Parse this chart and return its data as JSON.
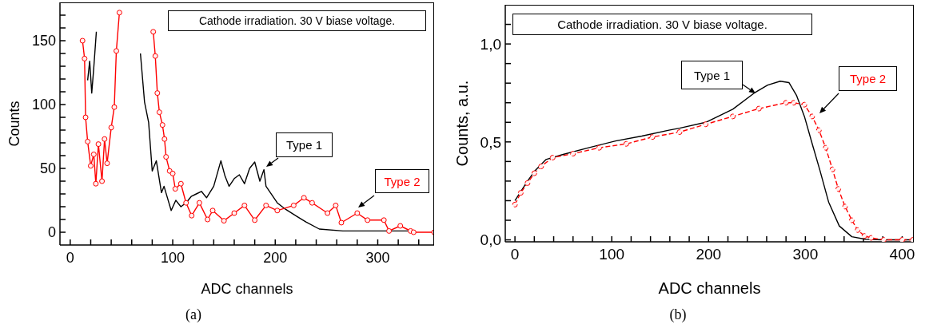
{
  "chart_data": [
    {
      "type": "line",
      "xlabel": "ADC channels",
      "ylabel": "Counts",
      "xlim": [
        -10,
        355
      ],
      "ylim": [
        -10,
        180
      ],
      "xticks": [
        0,
        {
          "value": 20,
          "label": null
        },
        {
          "value": 40,
          "label": null
        },
        {
          "value": 60,
          "label": null
        },
        {
          "value": 80,
          "label": null
        },
        100,
        {
          "value": 120,
          "label": null
        },
        {
          "value": 140,
          "label": null
        },
        {
          "value": 160,
          "label": null
        },
        {
          "value": 180,
          "label": null
        },
        200,
        {
          "value": 220,
          "label": null
        },
        {
          "value": 240,
          "label": null
        },
        {
          "value": 260,
          "label": null
        },
        {
          "value": 280,
          "label": null
        },
        300,
        {
          "value": 320,
          "label": null
        },
        {
          "value": 340,
          "label": null
        }
      ],
      "yticks": [
        0,
        {
          "value": 10,
          "label": null
        },
        {
          "value": 20,
          "label": null
        },
        {
          "value": 30,
          "label": null
        },
        {
          "value": 40,
          "label": null
        },
        50,
        {
          "value": 60,
          "label": null
        },
        {
          "value": 70,
          "label": null
        },
        {
          "value": 80,
          "label": null
        },
        {
          "value": 90,
          "label": null
        },
        100,
        {
          "value": 110,
          "label": null
        },
        {
          "value": 120,
          "label": null
        },
        {
          "value": 130,
          "label": null
        },
        {
          "value": 140,
          "label": null
        },
        150,
        {
          "value": 160,
          "label": null
        },
        {
          "value": 170,
          "label": null
        }
      ],
      "annotations": [
        "Cathode irradiation. 30 V biase voltage.",
        "(a)"
      ],
      "series": [
        {
          "name": "Type 1",
          "color": "#000000",
          "marker": "none",
          "line_style": "solid",
          "x": [
            17,
            19,
            21,
            23,
            25.5,
            47,
            68.5,
            72.5,
            76.5,
            80,
            84,
            89,
            91.5,
            98.5,
            103,
            108,
            113,
            118,
            123,
            128,
            133,
            140,
            147,
            151,
            155,
            160,
            165,
            170,
            175,
            180,
            185,
            189,
            191,
            202,
            210,
            222,
            230,
            243,
            266,
            306,
            330
          ],
          "values": [
            119,
            134,
            109,
            129,
            157,
            null,
            140,
            102,
            86,
            48,
            56,
            31,
            36,
            17,
            25,
            20,
            23,
            28,
            30,
            32,
            27,
            36,
            56,
            44,
            36,
            42,
            45,
            38,
            50,
            55,
            40,
            49,
            36,
            23,
            18,
            12,
            8,
            2.5,
            1,
            1,
            1
          ]
        },
        {
          "name": "Type 2",
          "color": "#ff0000",
          "marker": "circle",
          "line_style": "solid",
          "x": [
            12,
            14,
            15,
            17,
            20,
            23,
            25,
            27.5,
            31,
            33.5,
            36,
            40,
            43,
            45,
            48,
            64,
            81,
            83,
            85,
            87,
            90,
            92,
            93.5,
            97,
            100,
            102.5,
            108,
            113,
            118.5,
            126,
            134,
            139,
            150,
            160,
            170,
            180,
            191,
            202,
            218,
            228,
            236,
            251,
            259,
            264.5,
            280,
            290,
            306,
            311,
            322,
            332,
            335,
            355
          ],
          "values": [
            150,
            136,
            90,
            71,
            52,
            61,
            38,
            69,
            40,
            73,
            54,
            82,
            98,
            142,
            172,
            null,
            157,
            138,
            109,
            94,
            84,
            73,
            59,
            48,
            46,
            34,
            38,
            23,
            13,
            23,
            10,
            17,
            9,
            15,
            21,
            9.5,
            21,
            17,
            21,
            27,
            23,
            15,
            21,
            7.5,
            15,
            9.5,
            9.5,
            1,
            5,
            1,
            0,
            0
          ]
        }
      ]
    },
    {
      "type": "line",
      "xlabel": "ADC channels",
      "ylabel": "Counts, a.u.",
      "xlim": [
        -10,
        412
      ],
      "ylim": [
        -0.01,
        1.2
      ],
      "xticks": [
        0,
        {
          "value": 20,
          "label": null
        },
        {
          "value": 40,
          "label": null
        },
        {
          "value": 60,
          "label": null
        },
        {
          "value": 80,
          "label": null
        },
        100,
        {
          "value": 120,
          "label": null
        },
        {
          "value": 140,
          "label": null
        },
        {
          "value": 160,
          "label": null
        },
        {
          "value": 180,
          "label": null
        },
        200,
        {
          "value": 220,
          "label": null
        },
        {
          "value": 240,
          "label": null
        },
        {
          "value": 260,
          "label": null
        },
        {
          "value": 280,
          "label": null
        },
        300,
        {
          "value": 320,
          "label": null
        },
        {
          "value": 340,
          "label": null
        },
        {
          "value": 360,
          "label": null
        },
        {
          "value": 380,
          "label": null
        },
        400
      ],
      "yticks": [
        {
          "value": 0,
          "label": "0,0"
        },
        {
          "value": 0.1,
          "label": null
        },
        {
          "value": 0.2,
          "label": null
        },
        {
          "value": 0.3,
          "label": null
        },
        {
          "value": 0.4,
          "label": null
        },
        {
          "value": 0.5,
          "label": "0,5"
        },
        {
          "value": 0.6,
          "label": null
        },
        {
          "value": 0.7,
          "label": null
        },
        {
          "value": 0.8,
          "label": null
        },
        {
          "value": 0.9,
          "label": null
        },
        {
          "value": 1,
          "label": "1,0"
        },
        {
          "value": 1.1,
          "label": null
        }
      ],
      "annotations": [
        "Cathode irradiation. 30 V biase voltage.",
        "(b)"
      ],
      "series": [
        {
          "name": "Type 1",
          "color": "#000000",
          "marker": "none",
          "line_style": "solid",
          "x": [
            0,
            13,
            21,
            32,
            49,
            76,
            104,
            131,
            159,
            170,
            197,
            225,
            247,
            261,
            274,
            283,
            291,
            299,
            307,
            315,
            324,
            335,
            348,
            362,
            380,
            412
          ],
          "values": [
            0.2,
            0.3,
            0.355,
            0.41,
            0.435,
            0.47,
            0.505,
            0.53,
            0.56,
            0.57,
            0.6,
            0.667,
            0.749,
            0.79,
            0.81,
            0.803,
            0.736,
            0.63,
            0.491,
            0.355,
            0.193,
            0.071,
            0.016,
            0.003,
            0,
            0
          ]
        },
        {
          "name": "Type 2",
          "color": "#ff0000",
          "marker": "circle",
          "line_style": "dashed",
          "x": [
            0,
            6,
            13,
            20,
            27,
            39,
            60,
            87,
            115,
            142,
            170,
            197,
            225,
            252,
            280,
            288,
            299,
            307,
            314,
            321,
            328,
            334,
            341,
            348,
            354,
            361,
            368,
            381,
            400,
            411
          ],
          "values": [
            0.18,
            0.24,
            0.29,
            0.34,
            0.375,
            0.42,
            0.44,
            0.47,
            0.49,
            0.525,
            0.55,
            0.59,
            0.63,
            0.67,
            0.7,
            0.7,
            0.69,
            0.63,
            0.56,
            0.47,
            0.36,
            0.26,
            0.17,
            0.1,
            0.05,
            0.02,
            0.01,
            0,
            0,
            0
          ]
        }
      ]
    }
  ]
}
